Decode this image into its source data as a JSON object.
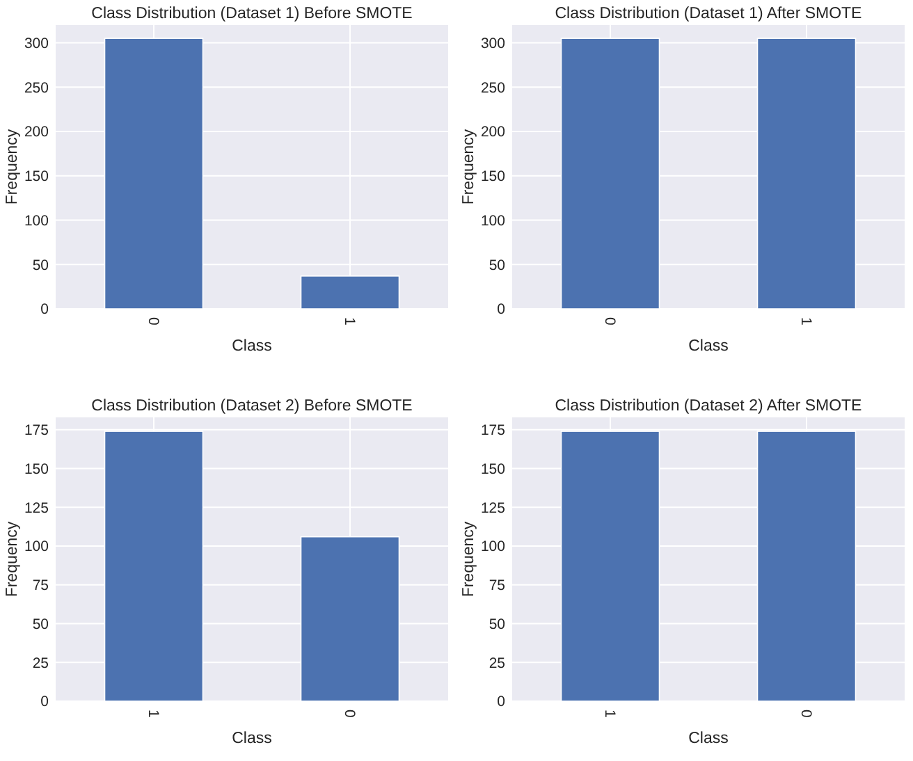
{
  "chart_data": [
    {
      "type": "bar",
      "title": "Class Distribution (Dataset 1) Before SMOTE",
      "xlabel": "Class",
      "ylabel": "Frequency",
      "categories": [
        "0",
        "1"
      ],
      "values": [
        305,
        37
      ],
      "color": "#4c72b0",
      "ylim": [
        0,
        320
      ],
      "yticks": [
        0,
        50,
        100,
        150,
        200,
        250,
        300
      ],
      "grid": true
    },
    {
      "type": "bar",
      "title": "Class Distribution (Dataset 1) After SMOTE",
      "xlabel": "Class",
      "ylabel": "Frequency",
      "categories": [
        "0",
        "1"
      ],
      "values": [
        305,
        305
      ],
      "color": "#4c72b0",
      "ylim": [
        0,
        320
      ],
      "yticks": [
        0,
        50,
        100,
        150,
        200,
        250,
        300
      ],
      "grid": true
    },
    {
      "type": "bar",
      "title": "Class Distribution (Dataset 2) Before SMOTE",
      "xlabel": "Class",
      "ylabel": "Frequency",
      "categories": [
        "1",
        "0"
      ],
      "values": [
        174,
        106
      ],
      "color": "#4c72b0",
      "ylim": [
        0,
        183
      ],
      "yticks": [
        0,
        25,
        50,
        75,
        100,
        125,
        150,
        175
      ],
      "grid": true
    },
    {
      "type": "bar",
      "title": "Class Distribution (Dataset 2) After SMOTE",
      "xlabel": "Class",
      "ylabel": "Frequency",
      "categories": [
        "1",
        "0"
      ],
      "values": [
        174,
        174
      ],
      "color": "#4c72b0",
      "ylim": [
        0,
        183
      ],
      "yticks": [
        0,
        25,
        50,
        75,
        100,
        125,
        150,
        175
      ],
      "grid": true
    }
  ]
}
